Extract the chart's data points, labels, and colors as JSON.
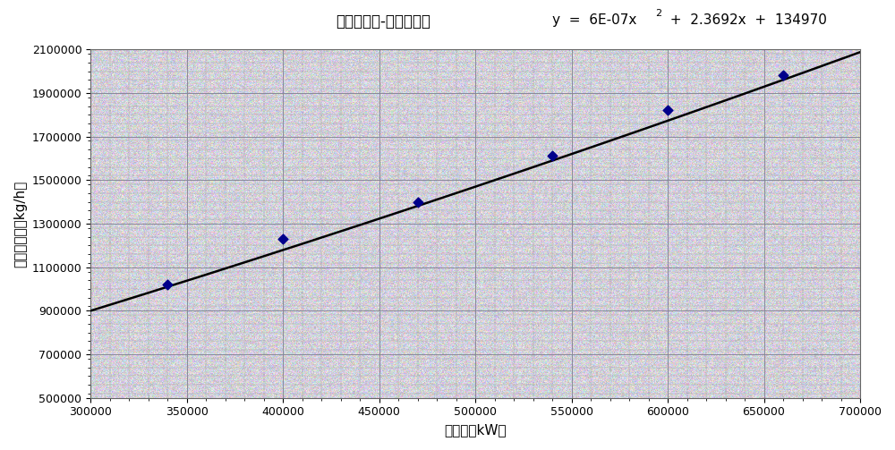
{
  "title_chinese": "主蒸汽流量-电负荷曲线",
  "a": 6e-07,
  "b": 2.3692,
  "c": 134970,
  "data_points_x": [
    340000,
    400000,
    470000,
    540000,
    600000,
    660000
  ],
  "data_points_y": [
    1020000,
    1230000,
    1400000,
    1610000,
    1820000,
    1980000
  ],
  "xlim": [
    300000,
    700000
  ],
  "ylim": [
    500000,
    2100000
  ],
  "xticks": [
    300000,
    350000,
    400000,
    450000,
    500000,
    550000,
    600000,
    650000,
    700000
  ],
  "yticks": [
    500000,
    700000,
    900000,
    1100000,
    1300000,
    1500000,
    1700000,
    1900000,
    2100000
  ],
  "xlabel": "电负荷（kW）",
  "ylabel": "主蒸汽流量（kg/h）",
  "line_color": "#000000",
  "point_color": "#00008b",
  "fig_bg": "#ffffff",
  "major_grid_color": "#888899",
  "minor_grid_color": "#aaaaaa"
}
